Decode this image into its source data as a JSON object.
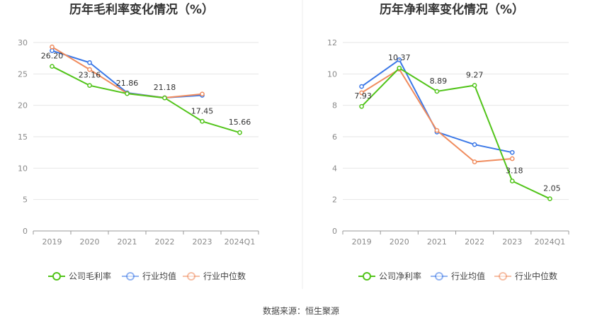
{
  "source": "数据来源：恒生聚源",
  "chart_data": [
    {
      "type": "line",
      "title": "历年毛利率变化情况（%）",
      "categories": [
        "2019",
        "2020",
        "2021",
        "2022",
        "2023",
        "2024Q1"
      ],
      "ylim": [
        0,
        30
      ],
      "yticks": [
        0,
        5,
        10,
        15,
        20,
        25,
        30
      ],
      "grid": true,
      "legend_position": "bottom",
      "series": [
        {
          "name": "公司毛利率",
          "color": "#52c41a",
          "labeled": true,
          "values": [
            26.2,
            23.16,
            21.86,
            21.18,
            17.45,
            15.66
          ],
          "labels": [
            "26.20",
            "23.16",
            "21.86",
            "21.18",
            "17.45",
            "15.66"
          ]
        },
        {
          "name": "行业均值",
          "color": "#3b78e7",
          "labeled": false,
          "values": [
            28.7,
            26.8,
            22.0,
            21.2,
            21.6,
            null
          ]
        },
        {
          "name": "行业中位数",
          "color": "#f08c5e",
          "labeled": false,
          "values": [
            29.3,
            25.7,
            21.9,
            21.2,
            21.8,
            null
          ]
        }
      ]
    },
    {
      "type": "line",
      "title": "历年净利率变化情况（%）",
      "categories": [
        "2019",
        "2020",
        "2021",
        "2022",
        "2023",
        "2024Q1"
      ],
      "ylim": [
        0,
        12
      ],
      "yticks": [
        0,
        2,
        4,
        6,
        8,
        10,
        12
      ],
      "grid": true,
      "legend_position": "bottom",
      "series": [
        {
          "name": "公司净利率",
          "color": "#52c41a",
          "labeled": true,
          "values": [
            7.93,
            10.37,
            8.89,
            9.27,
            3.18,
            2.05
          ],
          "labels": [
            "7.93",
            "10.37",
            "8.89",
            "9.27",
            "3.18",
            "2.05"
          ]
        },
        {
          "name": "行业均值",
          "color": "#3b78e7",
          "labeled": false,
          "values": [
            9.2,
            10.9,
            6.3,
            5.5,
            5.0,
            null
          ]
        },
        {
          "name": "行业中位数",
          "color": "#f08c5e",
          "labeled": false,
          "values": [
            8.8,
            10.3,
            6.4,
            4.4,
            4.6,
            null
          ]
        }
      ]
    }
  ]
}
